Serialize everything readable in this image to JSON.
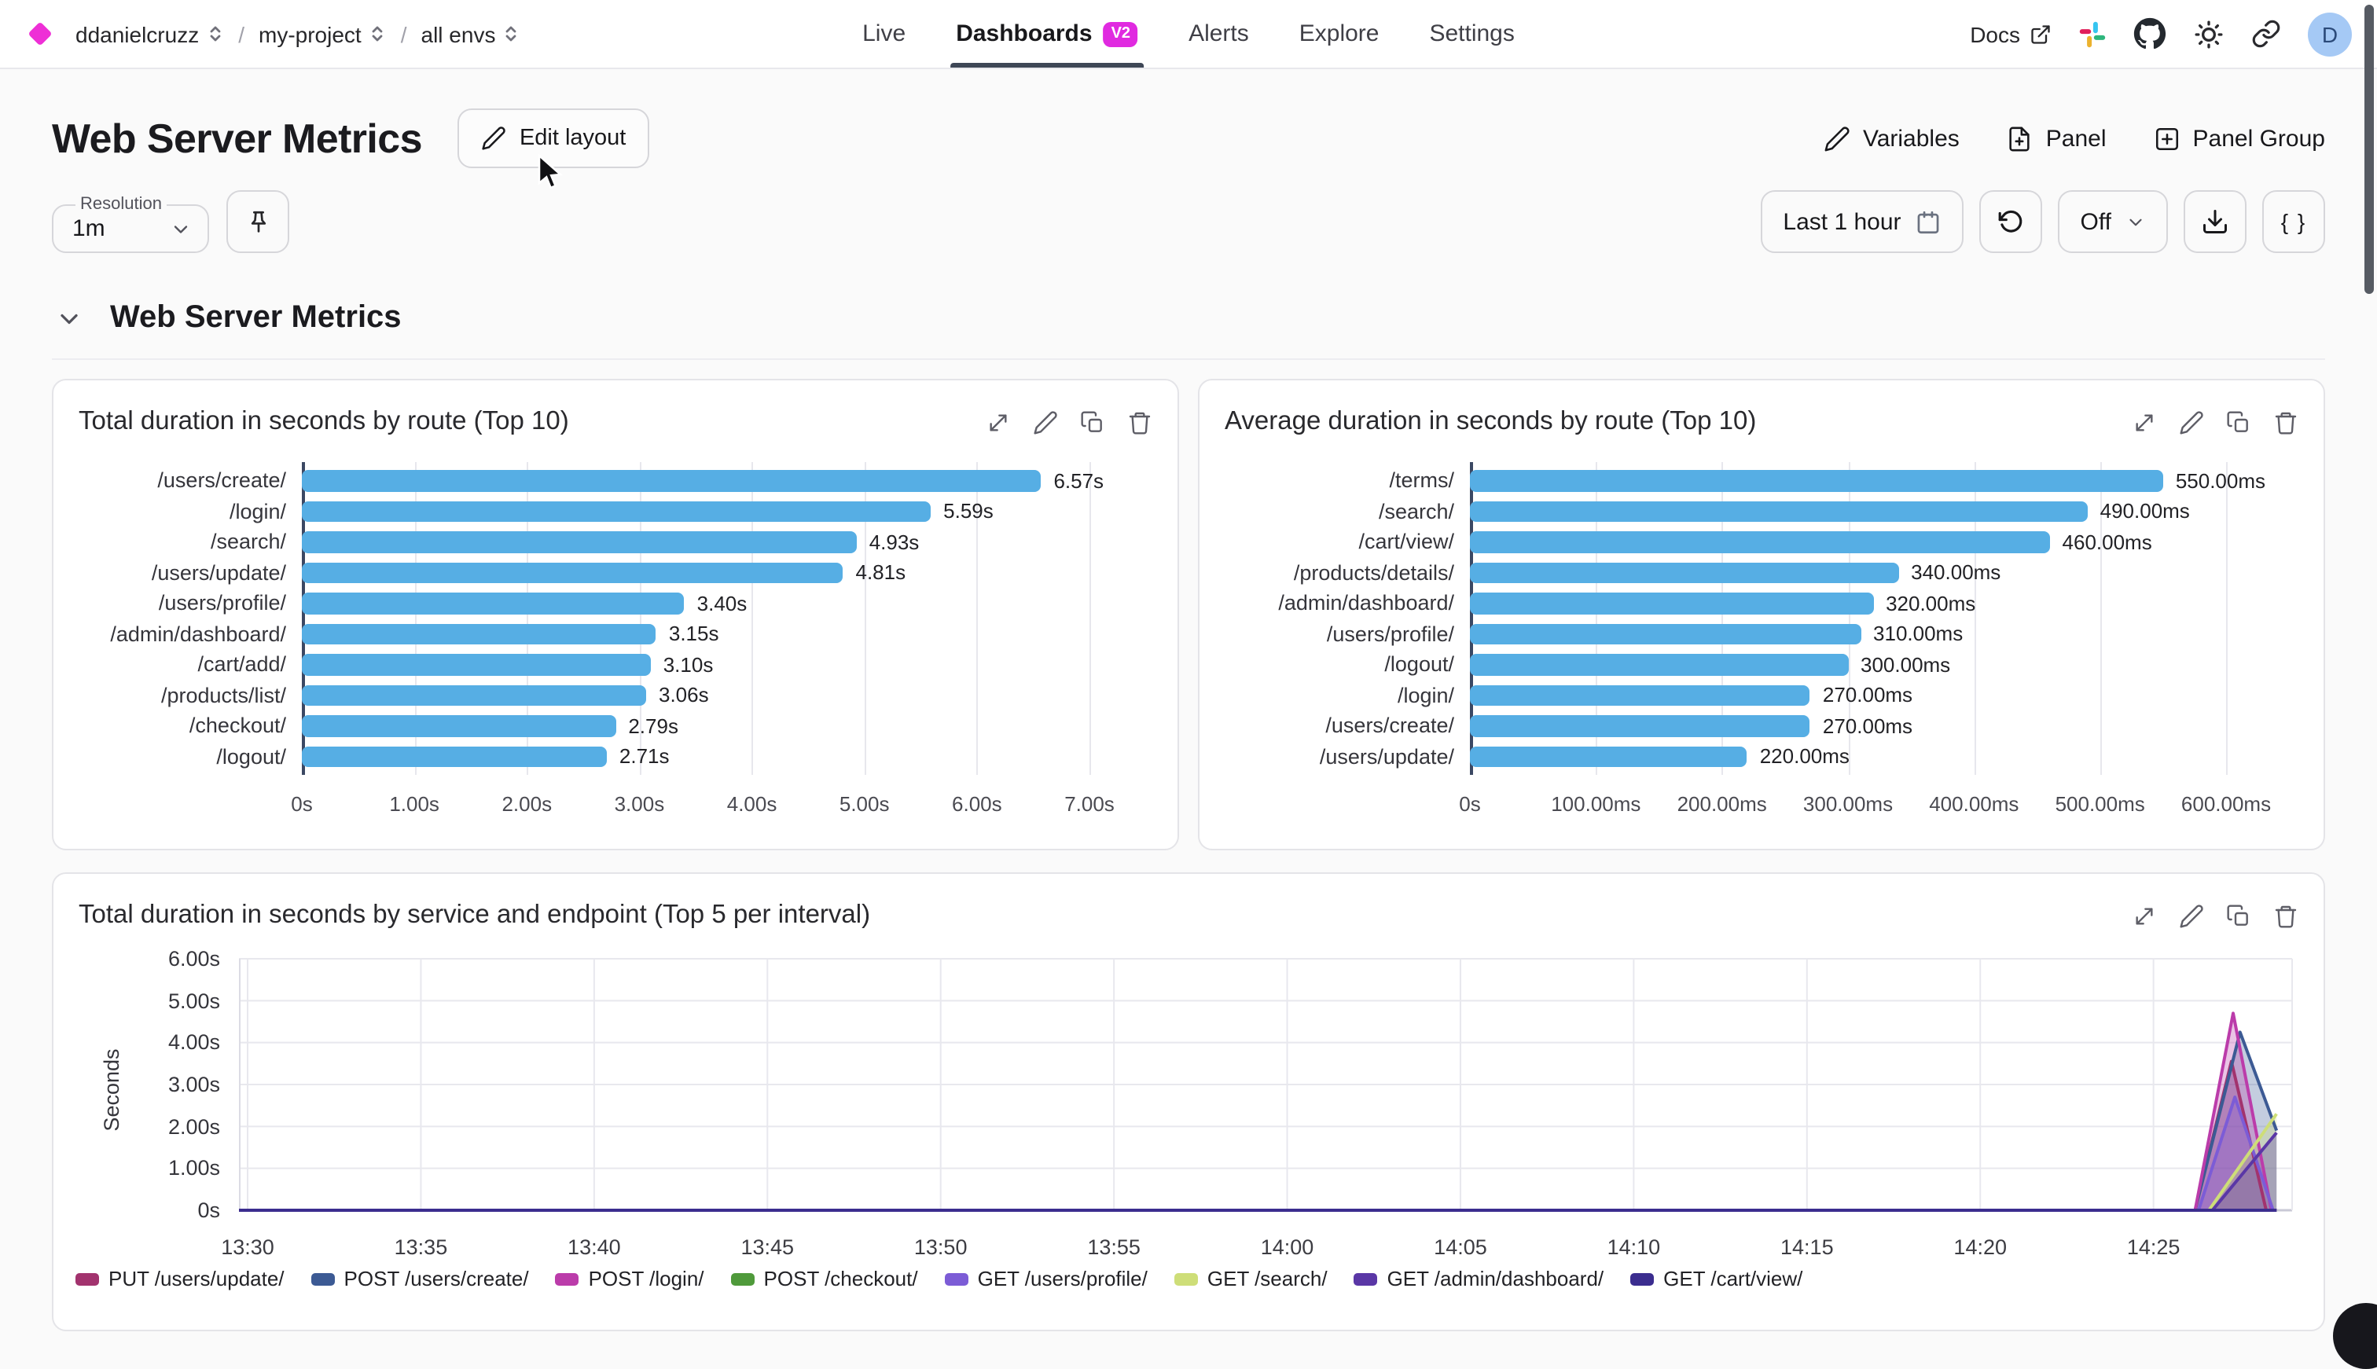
{
  "nav": {
    "logo_icon": "diamond-logo",
    "breadcrumb": {
      "org": "ddanielcruzz",
      "project": "my-project",
      "env": "all envs",
      "separator": "/"
    },
    "tabs": [
      {
        "label": "Live"
      },
      {
        "label": "Dashboards",
        "badge": "V2",
        "active": true
      },
      {
        "label": "Alerts"
      },
      {
        "label": "Explore"
      },
      {
        "label": "Settings"
      }
    ],
    "right": {
      "docs_label": "Docs",
      "icons": [
        "external-link-icon",
        "slack-icon",
        "github-icon",
        "sun-icon",
        "link-icon"
      ],
      "avatar_initial": "D"
    }
  },
  "header": {
    "title": "Web Server Metrics",
    "edit_layout_label": "Edit layout",
    "actions": {
      "variables": "Variables",
      "panel": "Panel",
      "panel_group": "Panel Group"
    }
  },
  "controls": {
    "resolution_label": "Resolution",
    "resolution_value": "1m",
    "time_range": "Last 1 hour",
    "refresh_mode": "Off",
    "braces_label": "{ }"
  },
  "section": {
    "title": "Web Server Metrics"
  },
  "panel_action_icons": [
    "expand-icon",
    "edit-icon",
    "duplicate-icon",
    "delete-icon"
  ],
  "colors": {
    "accent_magenta": "#e02ae0",
    "bar_blue": "#56aee4",
    "axis_dark": "#3b4863"
  },
  "chart_data": [
    {
      "type": "bar",
      "orientation": "horizontal",
      "title": "Total duration in seconds by route (Top 10)",
      "categories": [
        "/users/create/",
        "/login/",
        "/search/",
        "/users/update/",
        "/users/profile/",
        "/admin/dashboard/",
        "/cart/add/",
        "/products/list/",
        "/checkout/",
        "/logout/"
      ],
      "values": [
        6.57,
        5.59,
        4.93,
        4.81,
        3.4,
        3.15,
        3.1,
        3.06,
        2.79,
        2.71
      ],
      "value_labels": [
        "6.57s",
        "5.59s",
        "4.93s",
        "4.81s",
        "3.40s",
        "3.15s",
        "3.10s",
        "3.06s",
        "2.79s",
        "2.71s"
      ],
      "xticks": [
        "0s",
        "1.00s",
        "2.00s",
        "3.00s",
        "4.00s",
        "5.00s",
        "6.00s",
        "7.00s"
      ],
      "xlim": [
        0,
        7
      ],
      "unit": "s",
      "bar_color": "#56aee4",
      "grid": true
    },
    {
      "type": "bar",
      "orientation": "horizontal",
      "title": "Average duration in seconds by route (Top 10)",
      "categories": [
        "/terms/",
        "/search/",
        "/cart/view/",
        "/products/details/",
        "/admin/dashboard/",
        "/users/profile/",
        "/logout/",
        "/login/",
        "/users/create/",
        "/users/update/"
      ],
      "values": [
        550,
        490,
        460,
        340,
        320,
        310,
        300,
        270,
        270,
        220
      ],
      "value_labels": [
        "550.00ms",
        "490.00ms",
        "460.00ms",
        "340.00ms",
        "320.00ms",
        "310.00ms",
        "300.00ms",
        "270.00ms",
        "270.00ms",
        "220.00ms"
      ],
      "xticks": [
        "0s",
        "100.00ms",
        "200.00ms",
        "300.00ms",
        "400.00ms",
        "500.00ms",
        "600.00ms"
      ],
      "xlim": [
        0,
        600
      ],
      "unit": "ms",
      "bar_color": "#56aee4",
      "grid": true
    },
    {
      "type": "area",
      "title": "Total duration in seconds by service and endpoint (Top 5 per interval)",
      "ylabel": "Seconds",
      "yticks": [
        "0s",
        "1.00s",
        "2.00s",
        "3.00s",
        "4.00s",
        "5.00s",
        "6.00s"
      ],
      "ylim": [
        0,
        6
      ],
      "xlim": [
        -0.25,
        59
      ],
      "xticks": [
        {
          "label": "13:30",
          "t": 0
        },
        {
          "label": "13:35",
          "t": 5
        },
        {
          "label": "13:40",
          "t": 10
        },
        {
          "label": "13:45",
          "t": 15
        },
        {
          "label": "13:50",
          "t": 20
        },
        {
          "label": "13:55",
          "t": 25
        },
        {
          "label": "14:00",
          "t": 30
        },
        {
          "label": "14:05",
          "t": 35
        },
        {
          "label": "14:10",
          "t": 40
        },
        {
          "label": "14:15",
          "t": 45
        },
        {
          "label": "14:20",
          "t": 50
        },
        {
          "label": "14:25",
          "t": 55
        }
      ],
      "legend_position": "bottom",
      "series": [
        {
          "name": "PUT /users/update/",
          "color": "#a2336e",
          "points": [
            [
              -0.25,
              0
            ],
            [
              56.2,
              0
            ],
            [
              57.25,
              3.55
            ],
            [
              58.25,
              0
            ],
            [
              58.55,
              0
            ]
          ]
        },
        {
          "name": "POST /users/create/",
          "color": "#3c5a94",
          "points": [
            [
              -0.25,
              0
            ],
            [
              56.2,
              0
            ],
            [
              57.5,
              4.25
            ],
            [
              58.55,
              1.9
            ]
          ]
        },
        {
          "name": "POST /login/",
          "color": "#bb3caa",
          "points": [
            [
              -0.25,
              0
            ],
            [
              56.2,
              0
            ],
            [
              57.3,
              4.7
            ],
            [
              58.4,
              0
            ],
            [
              58.55,
              0
            ]
          ]
        },
        {
          "name": "POST /checkout/",
          "color": "#4f9a3b",
          "points": [
            [
              -0.25,
              0
            ],
            [
              58.55,
              0
            ]
          ]
        },
        {
          "name": "GET /users/profile/",
          "color": "#7c5cd6",
          "points": [
            [
              -0.25,
              0
            ],
            [
              56.3,
              0
            ],
            [
              57.35,
              2.7
            ],
            [
              58.45,
              0
            ],
            [
              58.55,
              0
            ]
          ]
        },
        {
          "name": "GET /search/",
          "color": "#cede78",
          "points": [
            [
              -0.25,
              0
            ],
            [
              56.6,
              0
            ],
            [
              58.55,
              2.3
            ]
          ]
        },
        {
          "name": "GET /admin/dashboard/",
          "color": "#5a37a6",
          "points": [
            [
              -0.25,
              0
            ],
            [
              56.7,
              0
            ],
            [
              58.55,
              1.85
            ]
          ]
        },
        {
          "name": "GET /cart/view/",
          "color": "#3b2d8f",
          "points": [
            [
              -0.25,
              0
            ],
            [
              58.55,
              0
            ]
          ]
        }
      ]
    }
  ]
}
